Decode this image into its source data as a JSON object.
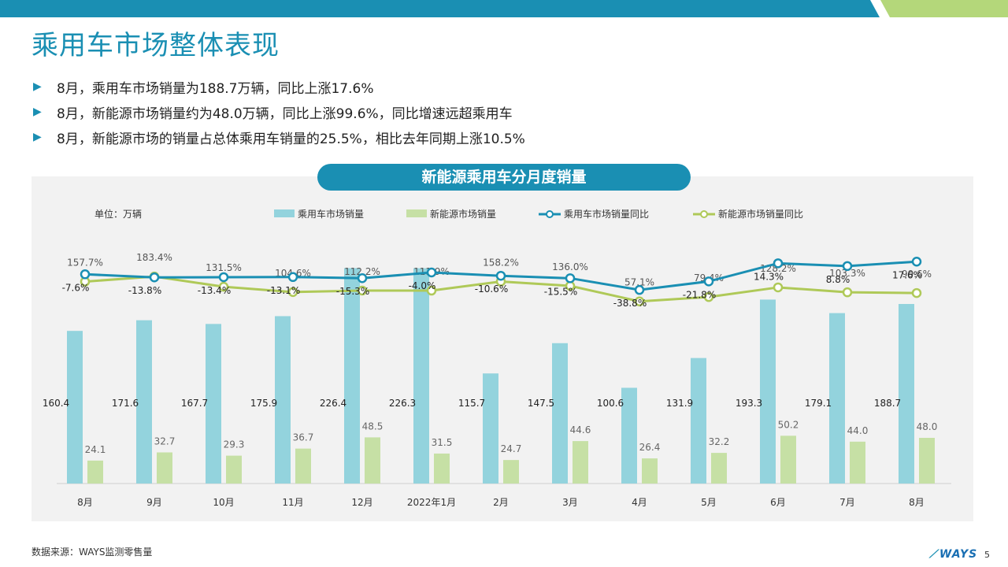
{
  "page": {
    "title": "乘用车市场整体表现",
    "bullets": [
      "8月，乘用车市场销量为188.7万辆，同比上涨17.6%",
      "8月，新能源市场销量约为48.0万辆，同比上涨99.6%，同比增速远超乘用车",
      "8月，新能源市场的销量占总体乘用车销量的25.5%，相比去年同期上涨10.5%"
    ],
    "source": "数据来源：WAYS监测零售量",
    "logo": "WAYS",
    "page_number": "5"
  },
  "colors": {
    "accent": "#1a8fb3",
    "bar_total": "#93d3dd",
    "bar_nev": "#c6e0a5",
    "line_total": "#1a8fb3",
    "line_nev": "#afc958",
    "topbar_dark": "#1a8fb3",
    "topbar_light": "#b4d77a"
  },
  "icons": {
    "bullet": "triangle-right-icon",
    "logo": "ways-logo-icon"
  },
  "chart_data": {
    "type": "bar",
    "title": "新能源乘用车分月度销量",
    "unit_label": "单位：万辆",
    "categories": [
      "8月",
      "9月",
      "10月",
      "11月",
      "12月",
      "2022年1月",
      "2月",
      "3月",
      "4月",
      "5月",
      "6月",
      "7月",
      "8月"
    ],
    "series": [
      {
        "name": "乘用车市场销量",
        "kind": "bar",
        "values": [
          160.4,
          171.6,
          167.7,
          175.9,
          226.4,
          226.3,
          115.7,
          147.5,
          100.6,
          131.9,
          193.3,
          179.1,
          188.7
        ],
        "labels": [
          "160.4",
          "171.6",
          "167.7",
          "175.9",
          "226.4",
          "226.3",
          "115.7",
          "147.5",
          "100.6",
          "131.9",
          "193.3",
          "179.1",
          "188.7"
        ]
      },
      {
        "name": "新能源市场销量",
        "kind": "bar",
        "values": [
          24.1,
          32.7,
          29.3,
          36.7,
          48.5,
          31.5,
          24.7,
          44.6,
          26.4,
          32.2,
          50.2,
          44.0,
          48.0
        ],
        "labels": [
          "24.1",
          "32.7",
          "29.3",
          "36.7",
          "48.5",
          "31.5",
          "24.7",
          "44.6",
          "26.4",
          "32.2",
          "50.2",
          "44.0",
          "48.0"
        ]
      },
      {
        "name": "乘用车市场销量同比",
        "kind": "line",
        "values": [
          -7.6,
          -13.8,
          -13.4,
          -13.1,
          -15.3,
          -4.0,
          -10.6,
          -15.5,
          -38.8,
          -21.8,
          14.3,
          8.8,
          17.6
        ],
        "labels": [
          "-7.6%",
          "-13.8%",
          "-13.4%",
          "-13.1%",
          "-15.3%",
          "-4.0%",
          "-10.6%",
          "-15.5%",
          "-38.8%",
          "-21.8%",
          "14.3%",
          "8.8%",
          "17.6%"
        ]
      },
      {
        "name": "新能源市场销量同比",
        "kind": "line",
        "values": [
          157.7,
          183.4,
          131.5,
          104.6,
          112.2,
          111.9,
          158.2,
          136.0,
          57.1,
          79.4,
          128.2,
          103.3,
          99.6
        ],
        "labels": [
          "157.7%",
          "183.4%",
          "131.5%",
          "104.6%",
          "112.2%",
          "111.9%",
          "158.2%",
          "136.0%",
          "57.1%",
          "79.4%",
          "128.2%",
          "103.3%",
          "99.6%"
        ]
      }
    ],
    "bar_ylim": [
      0,
      240
    ],
    "nev_yoy_ylim": [
      -900,
      500
    ],
    "total_yoy_ylim": [
      -400,
      150
    ],
    "grid": false,
    "legend_position": "top"
  }
}
